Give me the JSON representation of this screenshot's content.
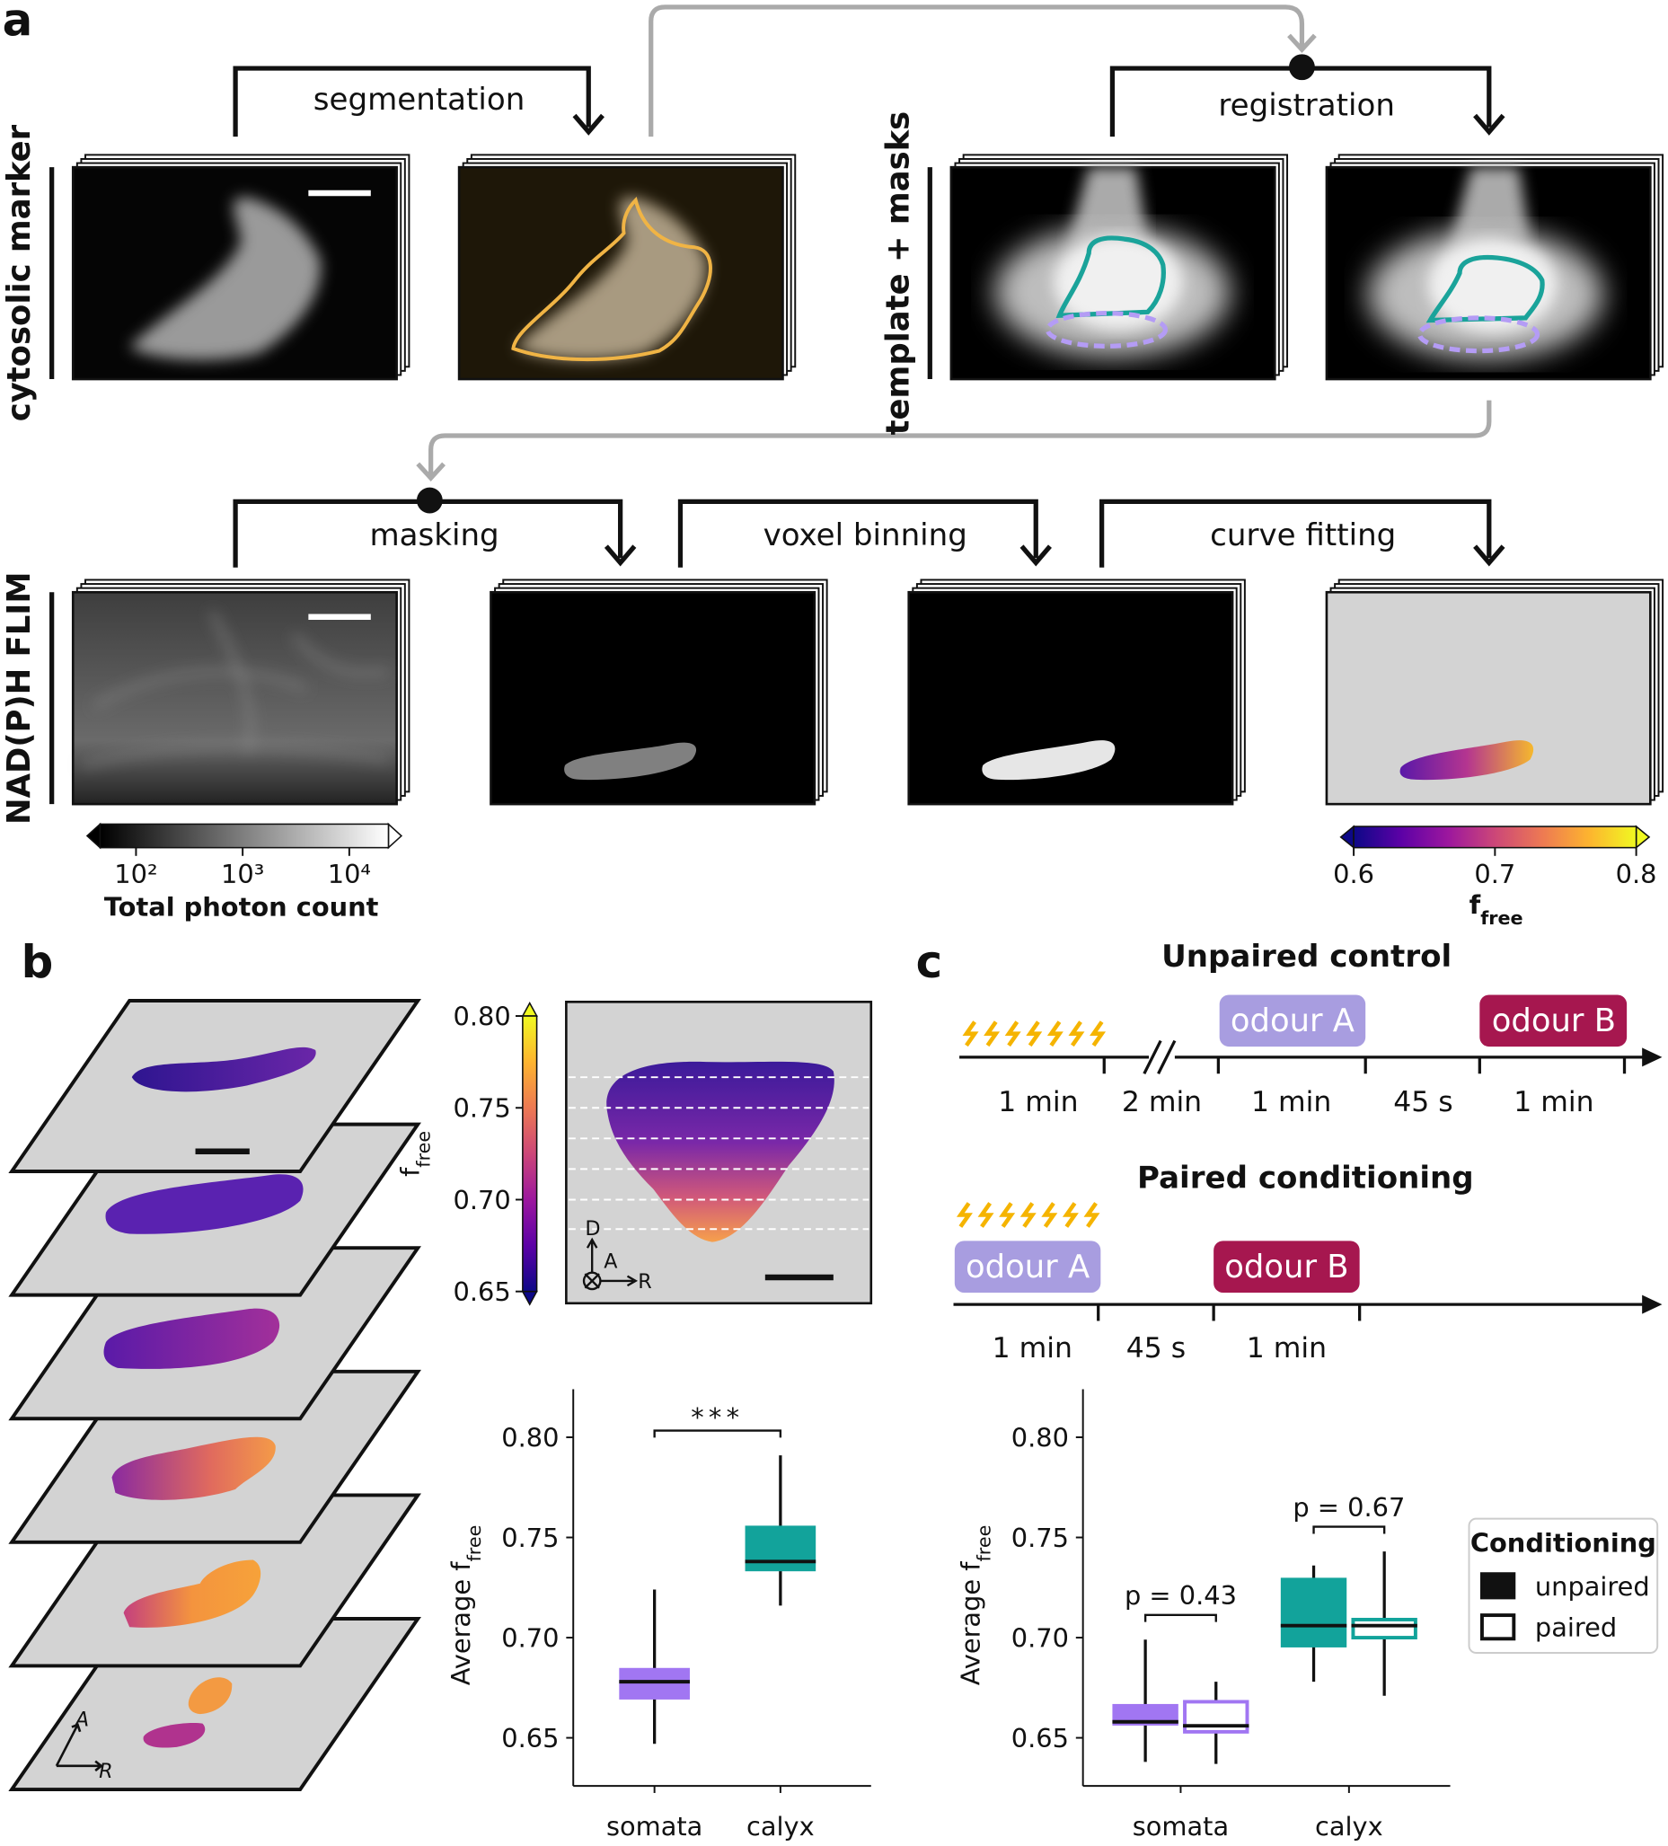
{
  "panel_labels": [
    "a",
    "b",
    "c"
  ],
  "pipeline": [
    "segmentation",
    "registration",
    "masking",
    "voxel binning",
    "curve fitting"
  ],
  "row_labels": [
    "cytosolic marker",
    "template + masks",
    "NAD(P)H FLIM"
  ],
  "orientation_labels": {
    "slices": [
      "A",
      "R"
    ],
    "inset": [
      "D",
      "A",
      "R"
    ]
  },
  "colorbars": [
    {
      "label": "Total photon count",
      "colormap": "gray",
      "log": true,
      "clim": [
        46,
        23300
      ],
      "ticks": [
        {
          "value": 100,
          "label": "10²"
        },
        {
          "value": 1000,
          "label": "10³"
        },
        {
          "value": 10000,
          "label": "10⁴"
        }
      ]
    },
    {
      "label": {
        "main": "f",
        "sub": "free"
      },
      "colormap": "plasma",
      "clim": [
        0.6,
        0.8
      ],
      "ticks": [
        0.6,
        0.7,
        0.8
      ]
    },
    {
      "label": {
        "main": "f",
        "sub": "free"
      },
      "colormap": "plasma",
      "orientation": "vertical",
      "clim": [
        0.65,
        0.8
      ],
      "ticks": [
        {
          "value": 0.8,
          "label": "0.80"
        },
        0.75,
        {
          "value": 0.7,
          "label": "0.70"
        },
        0.65
      ]
    }
  ],
  "protocol": [
    {
      "title": "Unpaired control",
      "odours": [
        "odour A",
        "odour B"
      ],
      "durations": [
        "1 min",
        "2 min",
        "1 min",
        "45 s",
        "1 min"
      ]
    },
    {
      "title": "Paired conditioning",
      "odours": [
        "odour A",
        "odour B"
      ],
      "durations": [
        "1 min",
        "45 s",
        "1 min"
      ]
    }
  ],
  "chart_data": [
    {
      "type": "box",
      "ylabel": {
        "main": "Average f",
        "sub": "free"
      },
      "categories": [
        "somata",
        "calyx"
      ],
      "colors": [
        "#a176f2",
        "#12a39b"
      ],
      "series": [
        {
          "boxes": [
            {
              "whislo": 0.647,
              "q1": 0.67,
              "med": 0.678,
              "q3": 0.684,
              "whishi": 0.724
            },
            {
              "whislo": 0.716,
              "q1": 0.734,
              "med": 0.738,
              "q3": 0.755,
              "whishi": 0.791
            }
          ]
        }
      ],
      "ylim": [
        0.626,
        0.824
      ],
      "yticks": [
        {
          "value": 0.8,
          "label": "0.80"
        },
        0.75,
        {
          "value": 0.7,
          "label": "0.70"
        },
        0.65
      ],
      "annotations": [
        "***"
      ]
    },
    {
      "type": "box",
      "ylabel": {
        "main": "Average f",
        "sub": "free"
      },
      "categories": [
        "somata",
        "calyx"
      ],
      "colors": [
        "#a176f2",
        "#12a39b"
      ],
      "series": [
        {
          "name": "unpaired",
          "filled": true,
          "boxes": [
            {
              "whislo": 0.638,
              "q1": 0.657,
              "med": 0.658,
              "q3": 0.666,
              "whishi": 0.699
            },
            {
              "whislo": 0.678,
              "q1": 0.696,
              "med": 0.706,
              "q3": 0.729,
              "whishi": 0.736
            }
          ]
        },
        {
          "name": "paired",
          "filled": false,
          "boxes": [
            {
              "whislo": 0.637,
              "q1": 0.653,
              "med": 0.656,
              "q3": 0.668,
              "whishi": 0.678
            },
            {
              "whislo": 0.671,
              "q1": 0.7,
              "med": 0.706,
              "q3": 0.709,
              "whishi": 0.743
            }
          ]
        }
      ],
      "ylim": [
        0.626,
        0.824
      ],
      "yticks": [
        {
          "value": 0.8,
          "label": "0.80"
        },
        0.75,
        {
          "value": 0.7,
          "label": "0.70"
        },
        0.65
      ],
      "annotations": [
        "p = 0.43",
        "p = 0.67"
      ],
      "legend": {
        "title": "Conditioning",
        "loc": "right"
      }
    }
  ]
}
